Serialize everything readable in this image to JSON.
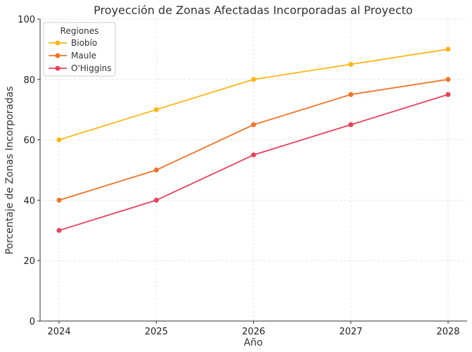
{
  "chart_data": {
    "type": "line",
    "title": "Proyección de Zonas Afectadas Incorporadas al Proyecto",
    "xlabel": "Año",
    "ylabel": "Porcentaje de Zonas Incorporadas",
    "x": [
      "2024",
      "2025",
      "2026",
      "2027",
      "2028"
    ],
    "yticks": [
      "0",
      "20",
      "40",
      "60",
      "80",
      "100"
    ],
    "ylim": [
      0,
      100
    ],
    "grid": true,
    "legend": {
      "title": "Regiones",
      "placement": "top-left"
    },
    "series": [
      {
        "name": "Biobío",
        "color": "#FDB515",
        "values": [
          60,
          70,
          80,
          85,
          90
        ]
      },
      {
        "name": "Maule",
        "color": "#F07427",
        "values": [
          40,
          50,
          65,
          75,
          80
        ]
      },
      {
        "name": "O'Higgins",
        "color": "#E8415A",
        "values": [
          30,
          40,
          55,
          65,
          75
        ]
      }
    ]
  }
}
